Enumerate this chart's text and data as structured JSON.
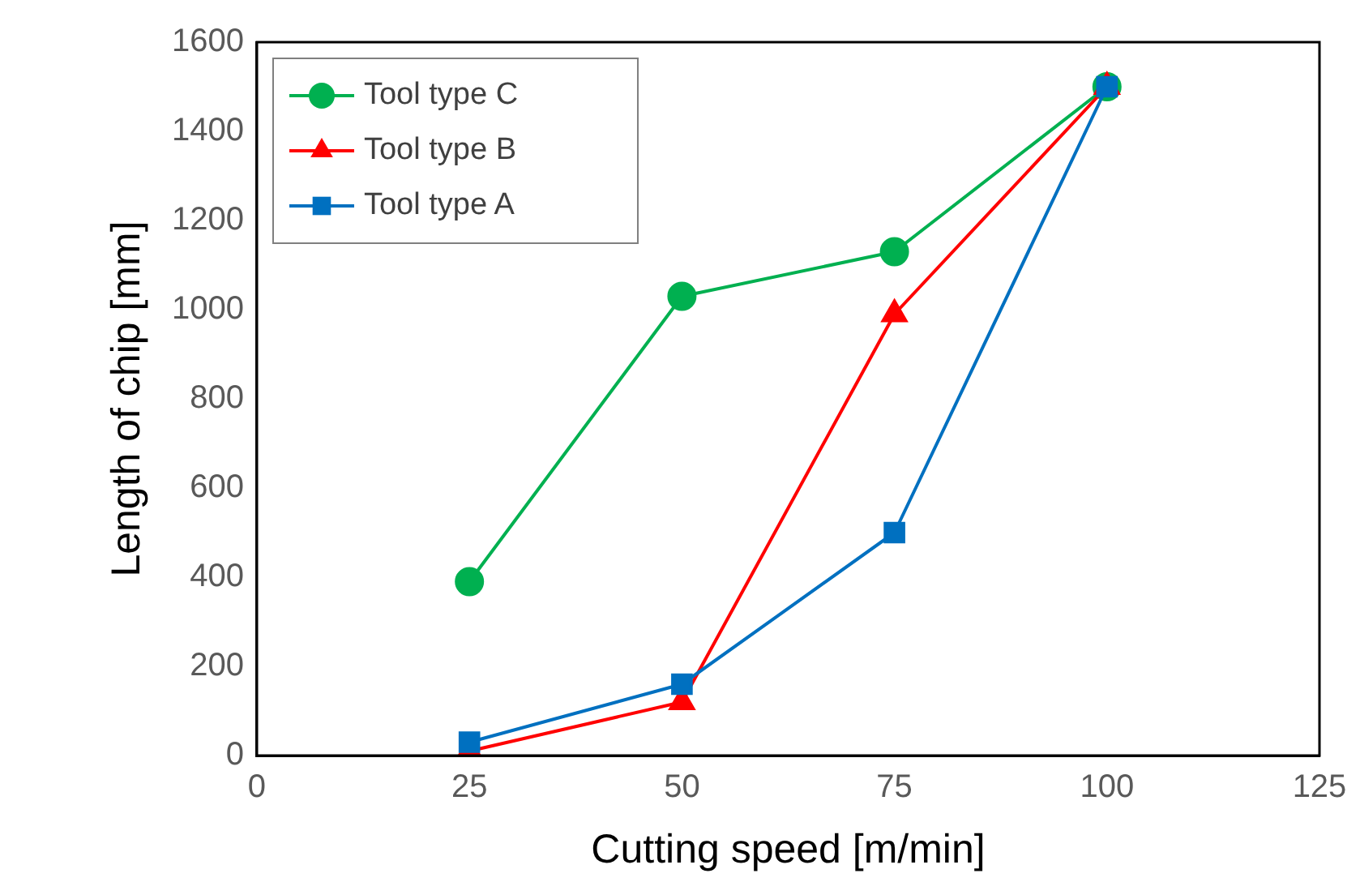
{
  "chart_data": {
    "type": "line",
    "xlabel": "Cutting speed [m/min]",
    "ylabel": "Length of chip [mm]",
    "x": [
      25,
      50,
      75,
      100
    ],
    "series": [
      {
        "name": "Tool type C",
        "color": "#00b050",
        "marker": "circle",
        "values": [
          390,
          1030,
          1130,
          1500
        ]
      },
      {
        "name": "Tool type B",
        "color": "#ff0000",
        "marker": "triangle",
        "values": [
          10,
          120,
          990,
          1500
        ]
      },
      {
        "name": "Tool type A",
        "color": "#0070c0",
        "marker": "square",
        "values": [
          30,
          160,
          500,
          1500
        ]
      }
    ],
    "xlim": [
      0,
      125
    ],
    "xticks": [
      0,
      25,
      50,
      75,
      100,
      125
    ],
    "ylim": [
      0,
      1600
    ],
    "yticks": [
      0,
      200,
      400,
      600,
      800,
      1000,
      1200,
      1400,
      1600
    ],
    "grid": false,
    "legend": "top left"
  }
}
